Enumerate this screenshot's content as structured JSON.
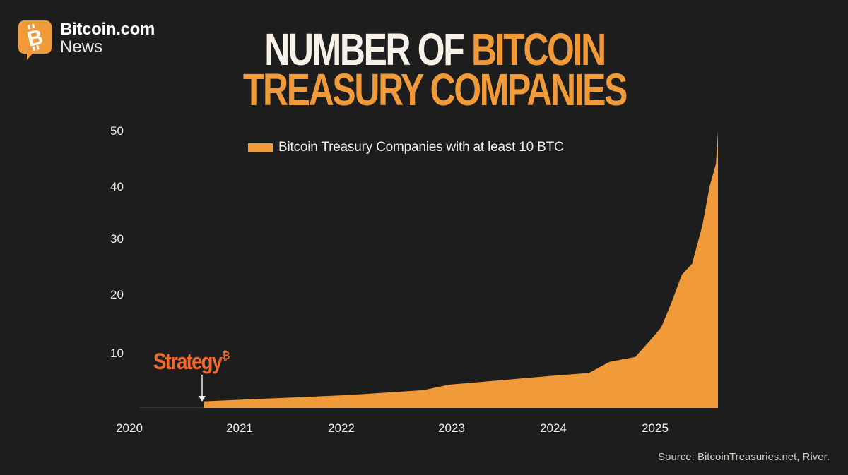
{
  "brand": {
    "name": "Bitcoin.com",
    "sub": "News",
    "icon": "bitcoin-chat-bubble-icon",
    "color": "#f09a3a"
  },
  "title": {
    "part1": "NUMBER OF ",
    "part2": "BITCOIN",
    "line2": "TREASURY COMPANIES"
  },
  "annotation": {
    "text": "Strategy",
    "symbol": "₿",
    "color": "#ef6a2b"
  },
  "source": "Source: BitcoinTreasuries.net, River.",
  "colors": {
    "background": "#1d1d1d",
    "fill": "#f09a3a",
    "text": "#f2ede4"
  },
  "chart_data": {
    "type": "area",
    "title": "NUMBER OF BITCOIN TREASURY COMPANIES",
    "xlabel": "",
    "ylabel": "",
    "legend": [
      "Bitcoin Treasury Companies with at least 10 BTC"
    ],
    "legend_position": "top-center",
    "grid": false,
    "xlim": [
      2020.0,
      2025.6
    ],
    "ylim": [
      0,
      50
    ],
    "x_ticks": [
      "2020",
      "2021",
      "2022",
      "2023",
      "2024",
      "2025"
    ],
    "y_ticks": [
      "10",
      "20",
      "30",
      "40",
      "50"
    ],
    "series": [
      {
        "name": "Bitcoin Treasury Companies with at least 10 BTC",
        "color": "#f09a3a",
        "x": [
          2020.0,
          2020.62,
          2020.63,
          2021.0,
          2021.5,
          2022.0,
          2022.5,
          2022.75,
          2023.0,
          2023.5,
          2024.0,
          2024.35,
          2024.55,
          2024.8,
          2024.95,
          2025.05,
          2025.15,
          2025.25,
          2025.35,
          2025.45,
          2025.52,
          2025.58,
          2025.6
        ],
        "values": [
          0,
          0,
          1.2,
          1.5,
          1.9,
          2.3,
          2.9,
          3.2,
          4.2,
          5.0,
          5.8,
          6.3,
          8.3,
          9.2,
          12.3,
          14.5,
          19.0,
          24.0,
          26.0,
          33.0,
          40.0,
          44.0,
          50.0
        ]
      }
    ],
    "annotations": [
      {
        "text": "Strategy₿",
        "x": 2020.62,
        "y": 1.2,
        "arrow": "down"
      }
    ]
  }
}
